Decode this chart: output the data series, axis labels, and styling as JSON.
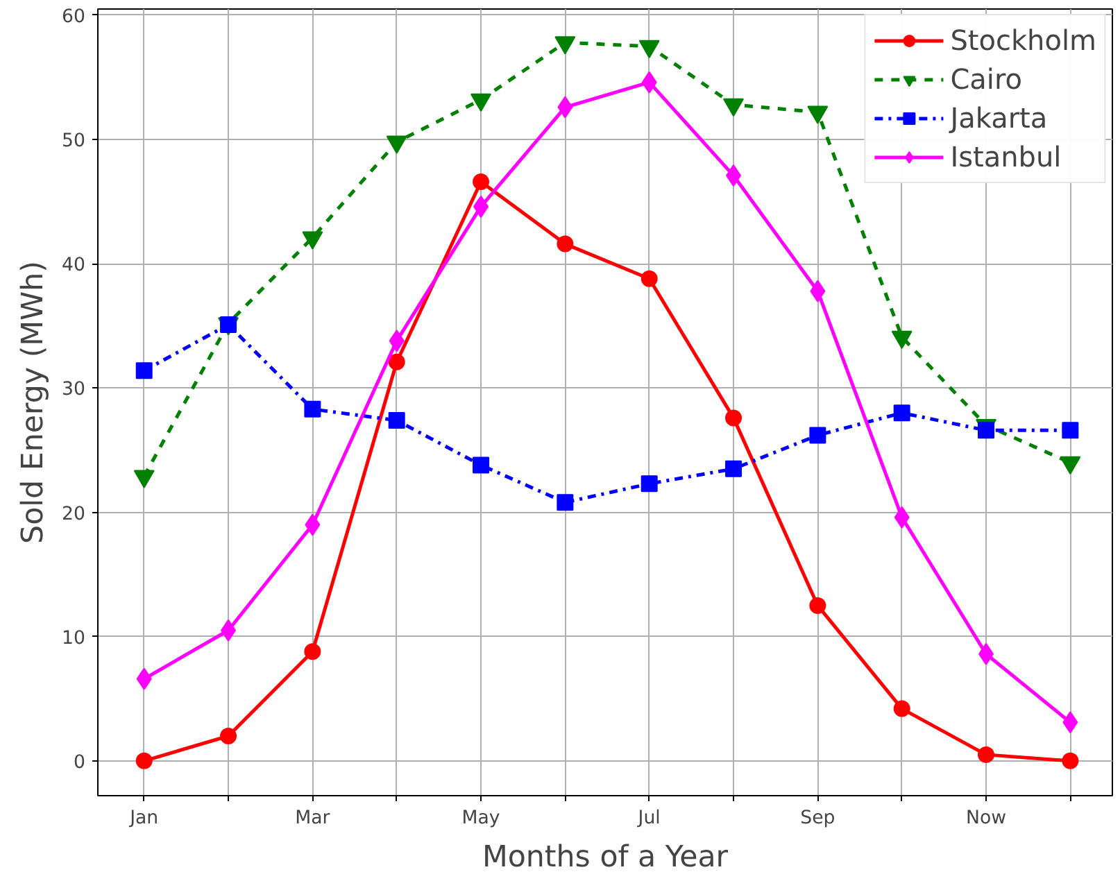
{
  "chart_data": {
    "type": "line",
    "xlabel": "Months of a Year",
    "ylabel": "Sold Energy (MWh)",
    "categories": [
      "Jan",
      null,
      "Mar",
      null,
      "May",
      null,
      "Jul",
      null,
      "Sep",
      null,
      "Now",
      null
    ],
    "ylim": [
      -2.8,
      60.5
    ],
    "yticks": [
      0,
      10,
      20,
      30,
      40,
      50,
      60
    ],
    "grid": true,
    "legend": "top right",
    "series": [
      {
        "name": "Stockholm",
        "color": "#ff0000",
        "marker": "circle",
        "line_style": "solid",
        "values": [
          0,
          2,
          8.8,
          32.1,
          46.6,
          41.6,
          38.8,
          27.6,
          12.5,
          4.2,
          0.5,
          0
        ]
      },
      {
        "name": "Cairo",
        "color": "#008000",
        "marker": "triangle",
        "line_style": "dashed",
        "values": [
          22.9,
          35.2,
          42.1,
          49.8,
          53.2,
          57.8,
          57.5,
          52.8,
          52.2,
          34.1,
          27,
          24
        ]
      },
      {
        "name": "Jakarta",
        "color": "#0000ff",
        "marker": "square",
        "line_style": "dashdot",
        "values": [
          31.4,
          35.1,
          28.3,
          27.4,
          23.8,
          20.8,
          22.3,
          23.5,
          26.2,
          28,
          26.6,
          26.6
        ]
      },
      {
        "name": "Istanbul",
        "color": "#ff00ff",
        "marker": "diamond",
        "line_style": "solid",
        "values": [
          6.6,
          10.5,
          19,
          33.8,
          44.6,
          52.6,
          54.6,
          47.1,
          37.8,
          19.6,
          8.6,
          3.1
        ]
      }
    ]
  }
}
